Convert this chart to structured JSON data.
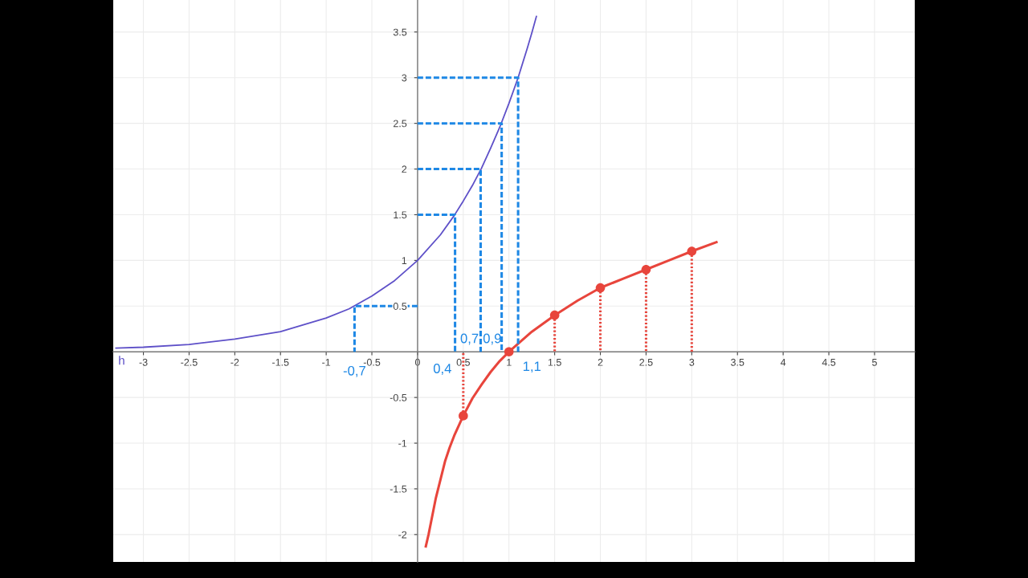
{
  "chart_data": {
    "type": "line",
    "xlim": [
      -3.33,
      5.44
    ],
    "ylim": [
      -2.3,
      3.85
    ],
    "xticks": [
      -3,
      -2.5,
      -2,
      -1.5,
      -1,
      -0.5,
      0,
      0.5,
      1,
      1.5,
      2,
      2.5,
      3,
      3.5,
      4,
      4.5,
      5
    ],
    "yticks": [
      -2,
      -1.5,
      -1,
      -0.5,
      0.5,
      1,
      1.5,
      2,
      2.5,
      3,
      3.5
    ],
    "grid": true,
    "legend": false,
    "series": [
      {
        "name": "h",
        "color": "#5e50c8",
        "line_style": "solid",
        "x": [
          -3.3,
          -3,
          -2.5,
          -2,
          -1.5,
          -1,
          -0.75,
          -0.5,
          -0.25,
          0,
          0.25,
          0.4,
          0.5,
          0.6,
          0.7,
          0.8,
          0.9,
          1,
          1.05,
          1.1,
          1.15,
          1.2,
          1.25,
          1.3
        ],
        "values": [
          0.04,
          0.05,
          0.08,
          0.14,
          0.22,
          0.37,
          0.47,
          0.61,
          0.78,
          1,
          1.28,
          1.49,
          1.65,
          1.82,
          2.01,
          2.23,
          2.46,
          2.72,
          2.86,
          3.0,
          3.16,
          3.32,
          3.49,
          3.67
        ]
      },
      {
        "color": "#e8453c",
        "line_style": "solid",
        "x": [
          0.09,
          0.12,
          0.15,
          0.2,
          0.25,
          0.3,
          0.35,
          0.4,
          0.5,
          0.6,
          0.7,
          0.8,
          0.9,
          1,
          1.25,
          1.5,
          1.75,
          2,
          2.25,
          2.5,
          2.75,
          3,
          3.27
        ],
        "values": [
          -2.13,
          -2.0,
          -1.85,
          -1.6,
          -1.4,
          -1.2,
          -1.05,
          -0.92,
          -0.7,
          -0.51,
          -0.36,
          -0.22,
          -0.1,
          0,
          0.22,
          0.4,
          0.56,
          0.7,
          0.8,
          0.9,
          1.0,
          1.1,
          1.2
        ]
      },
      {
        "type": "scatter",
        "color": "#e8453c",
        "marker": "circle",
        "x": [
          0.5,
          1,
          1.5,
          2,
          2.5,
          3
        ],
        "values": [
          -0.7,
          0,
          0.4,
          0.7,
          0.9,
          1.1
        ]
      },
      {
        "color": "#1e88e5",
        "line_style": "dashed",
        "x": [
          0,
          1.1,
          1.1,
          null,
          0,
          0.92,
          0.92,
          null,
          0,
          0.69,
          0.69,
          null,
          0,
          0.41,
          0.41,
          null,
          0,
          -0.69,
          -0.69
        ],
        "values": [
          3,
          3,
          0,
          null,
          2.5,
          2.5,
          0,
          null,
          2,
          2,
          0,
          null,
          1.5,
          1.5,
          0,
          null,
          0.5,
          0.5,
          0
        ]
      },
      {
        "color": "#e8453c",
        "line_style": "dotted",
        "x": [
          0.5,
          0.5,
          null,
          1.5,
          1.5,
          null,
          2,
          2,
          null,
          2.5,
          2.5,
          null,
          3,
          3
        ],
        "values": [
          -0.7,
          0,
          null,
          0.4,
          0,
          null,
          0.7,
          0,
          null,
          0.9,
          0,
          null,
          1.1,
          0
        ]
      }
    ],
    "annotations": [
      {
        "text": "-0,7",
        "x": -0.69,
        "y": 0
      },
      {
        "text": "0,4",
        "x": 0.41,
        "y": 0
      },
      {
        "text": "0,7",
        "x": 0.69,
        "y": 0
      },
      {
        "text": "0,9",
        "x": 0.92,
        "y": 0
      },
      {
        "text": "1,1",
        "x": 1.1,
        "y": 0
      }
    ]
  }
}
